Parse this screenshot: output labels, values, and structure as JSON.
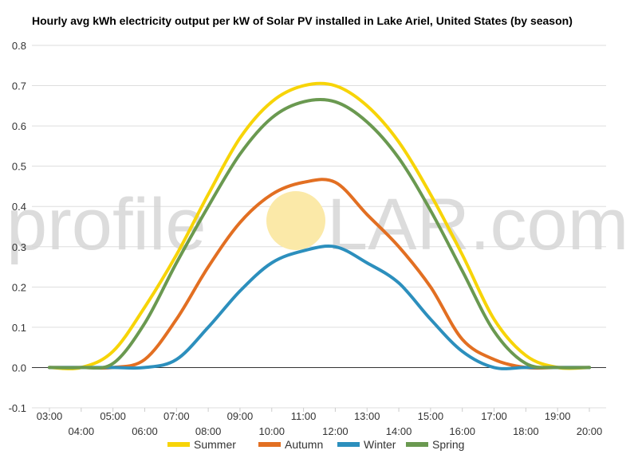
{
  "chart_data": {
    "type": "line",
    "title": "Hourly avg kWh electricity output per kW of Solar PV installed in Lake Ariel, United States (by season)",
    "x": [
      "03:00",
      "04:00",
      "05:00",
      "06:00",
      "07:00",
      "08:00",
      "09:00",
      "10:00",
      "11:00",
      "12:00",
      "13:00",
      "14:00",
      "15:00",
      "16:00",
      "17:00",
      "18:00",
      "19:00",
      "20:00"
    ],
    "ylim": [
      -0.1,
      0.8
    ],
    "yticks": [
      -0.1,
      0.0,
      0.1,
      0.2,
      0.3,
      0.4,
      0.5,
      0.6,
      0.7,
      0.8
    ],
    "grid": true,
    "legend_position": "bottom",
    "series": [
      {
        "name": "Summer",
        "color": "#f7d408",
        "values": [
          0.0,
          0.0,
          0.04,
          0.15,
          0.28,
          0.43,
          0.57,
          0.66,
          0.7,
          0.7,
          0.65,
          0.56,
          0.43,
          0.28,
          0.12,
          0.03,
          0.0,
          0.0
        ]
      },
      {
        "name": "Autumn",
        "color": "#e26f22",
        "values": [
          0.0,
          0.0,
          0.0,
          0.02,
          0.12,
          0.25,
          0.36,
          0.43,
          0.46,
          0.46,
          0.38,
          0.3,
          0.2,
          0.07,
          0.02,
          0.0,
          0.0,
          0.0
        ]
      },
      {
        "name": "Winter",
        "color": "#2c8fbd",
        "values": [
          0.0,
          0.0,
          0.0,
          0.0,
          0.02,
          0.1,
          0.19,
          0.26,
          0.29,
          0.3,
          0.26,
          0.21,
          0.12,
          0.04,
          0.0,
          0.0,
          0.0,
          0.0
        ]
      },
      {
        "name": "Spring",
        "color": "#6a9950",
        "values": [
          0.0,
          0.0,
          0.01,
          0.11,
          0.26,
          0.4,
          0.53,
          0.62,
          0.66,
          0.66,
          0.61,
          0.52,
          0.39,
          0.24,
          0.09,
          0.01,
          0.0,
          0.0
        ]
      }
    ]
  },
  "watermark": {
    "left_text": "profile",
    "right_text": "LAR.com",
    "sun_color": "#fbe9a8"
  }
}
